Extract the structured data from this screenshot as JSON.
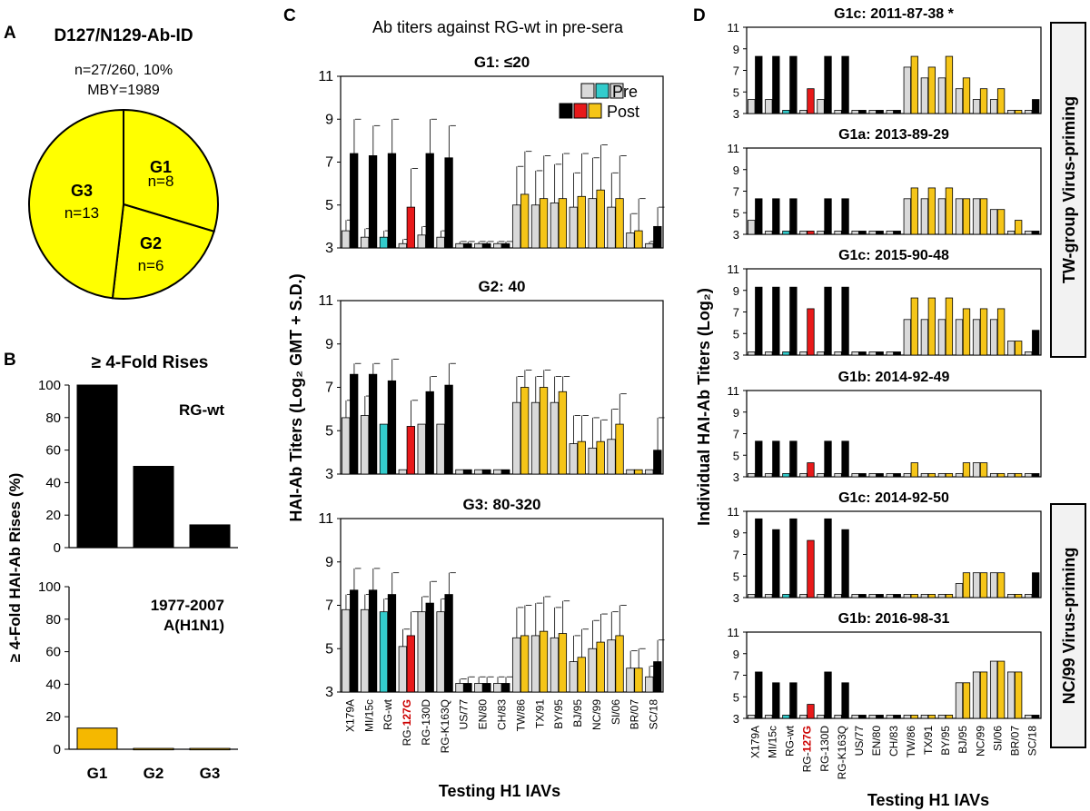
{
  "panels": {
    "A": {
      "letter": "A",
      "title": "D127/N129-Ab-ID",
      "line1": "n=27/260, 10%",
      "line2": "MBY=1989",
      "slices": [
        {
          "label": "G1",
          "n": "n=8",
          "value": 8
        },
        {
          "label": "G2",
          "n": "n=6",
          "value": 6
        },
        {
          "label": "G3",
          "n": "n=13",
          "value": 13
        }
      ]
    },
    "B": {
      "letter": "B",
      "title": "≥ 4-Fold Rises",
      "ylabel": "≥ 4-Fold HAI-Ab Rises (%)",
      "categories": [
        "G1",
        "G2",
        "G3"
      ]
    },
    "C": {
      "letter": "C",
      "title": "Ab titers against RG-wt in pre-sera",
      "ylabel": "HAI-Ab Titers (Log₂ GMT + S.D.)",
      "xlabel": "Testing H1 IAVs",
      "legend": {
        "pre": "Pre",
        "post": "Post"
      }
    },
    "D": {
      "letter": "D",
      "ylabel": "Individual HAI-Ab Titers (Log₂)",
      "xlabel": "Testing H1 IAVs",
      "side_label_top": "TW-group Virus-priming",
      "side_label_bottom": "NC/99 Virus-priming"
    }
  },
  "viruses": [
    "X179A",
    "MI/15c",
    "RG-wt",
    "RG-127G",
    "RG-130D",
    "RG-K163Q",
    "US/77",
    "EN/80",
    "CH/83",
    "TW/86",
    "TX/91",
    "BY/95",
    "BJ/95",
    "NC/99",
    "SI/06",
    "BR/07",
    "SC/18"
  ],
  "colors": {
    "pre_base": "#d9d9d9",
    "post_base": "#000000",
    "pre_wt": "#33cccc",
    "post_127g": "#e8191a",
    "pre_human": "#d9d9d9",
    "post_human": "#f5c518",
    "pie": "#ffff00",
    "bar_b_top": "#000000",
    "bar_b_bottom": "#f5b800",
    "red_label": "#cc0000"
  },
  "chart_data": [
    {
      "id": "A",
      "type": "pie",
      "title": "D127/N129-Ab-ID",
      "categories": [
        "G1",
        "G2",
        "G3"
      ],
      "values": [
        8,
        6,
        13
      ]
    },
    {
      "id": "B-top",
      "type": "bar",
      "title": "≥ 4-Fold Rises",
      "series_label": "RG-wt",
      "categories": [
        "G1",
        "G2",
        "G3"
      ],
      "values": [
        100,
        50,
        14
      ],
      "ylim": [
        0,
        100
      ],
      "yticks": [
        0,
        20,
        40,
        60,
        80,
        100
      ]
    },
    {
      "id": "B-bottom",
      "type": "bar",
      "series_label": [
        "1977-2007",
        "A(H1N1)"
      ],
      "categories": [
        "G1",
        "G2",
        "G3"
      ],
      "values": [
        13,
        0.5,
        0.5
      ],
      "ylim": [
        0,
        100
      ],
      "yticks": [
        0,
        20,
        40,
        60,
        80,
        100
      ]
    },
    {
      "id": "C-G1",
      "type": "bar",
      "title": "G1: ≤20",
      "ylim": [
        3,
        11
      ],
      "yticks": [
        3,
        5,
        7,
        9,
        11
      ],
      "series": [
        {
          "name": "Pre",
          "values": [
            3.8,
            3.5,
            3.5,
            3.2,
            3.6,
            3.5,
            3.2,
            3.2,
            3.2,
            5.0,
            5.0,
            5.1,
            4.9,
            5.3,
            4.9,
            3.7,
            3.2
          ],
          "sd": [
            0.5,
            0.4,
            0.3,
            0.2,
            0.4,
            0.3,
            0.1,
            0.1,
            0.1,
            1.8,
            1.6,
            1.8,
            1.6,
            1.9,
            1.6,
            0.9,
            0.1
          ]
        },
        {
          "name": "Post",
          "values": [
            7.4,
            7.3,
            7.4,
            4.9,
            7.4,
            7.2,
            3.2,
            3.2,
            3.2,
            5.5,
            5.3,
            5.3,
            5.4,
            5.7,
            5.3,
            3.8,
            4.0
          ],
          "sd": [
            1.6,
            1.4,
            1.6,
            1.8,
            1.6,
            1.5,
            0.1,
            0.1,
            0.1,
            2.0,
            2.0,
            2.1,
            2.0,
            2.1,
            2.0,
            1.5,
            0.9
          ]
        }
      ]
    },
    {
      "id": "C-G2",
      "type": "bar",
      "title": "G2: 40",
      "ylim": [
        3,
        11
      ],
      "yticks": [
        3,
        5,
        7,
        9,
        11
      ],
      "series": [
        {
          "name": "Pre",
          "values": [
            5.6,
            5.7,
            5.3,
            3.2,
            5.3,
            5.3,
            3.2,
            3.2,
            3.2,
            6.3,
            6.3,
            6.3,
            4.4,
            4.2,
            4.6,
            3.2,
            3.2
          ],
          "sd": [
            0.8,
            0.9,
            0.0,
            0.0,
            0.0,
            0.0,
            0.0,
            0.0,
            0.0,
            1.2,
            1.2,
            1.2,
            1.3,
            1.4,
            1.4,
            0.0,
            0.0
          ],
          "sd_hidden": true
        },
        {
          "name": "Post",
          "values": [
            7.6,
            7.6,
            7.3,
            5.2,
            6.8,
            7.1,
            3.2,
            3.2,
            3.2,
            7.0,
            7.0,
            6.8,
            4.5,
            4.5,
            5.3,
            3.2,
            4.1
          ],
          "sd": [
            0.5,
            0.5,
            1.0,
            1.2,
            0.7,
            1.0,
            0.0,
            0.0,
            0.0,
            0.8,
            0.8,
            0.7,
            1.2,
            1.0,
            1.4,
            0.0,
            1.5
          ]
        }
      ]
    },
    {
      "id": "C-G3",
      "type": "bar",
      "title": "G3: 80-320",
      "ylim": [
        3,
        11
      ],
      "yticks": [
        3,
        5,
        7,
        9,
        11
      ],
      "series": [
        {
          "name": "Pre",
          "values": [
            6.8,
            6.8,
            6.7,
            5.1,
            6.7,
            6.7,
            3.4,
            3.4,
            3.4,
            5.5,
            5.6,
            5.5,
            4.4,
            5.0,
            5.4,
            4.1,
            3.7
          ],
          "sd": [
            0.7,
            0.7,
            0.6,
            0.8,
            0.7,
            0.6,
            0.2,
            0.3,
            0.3,
            1.4,
            1.5,
            1.4,
            1.2,
            1.3,
            1.3,
            0.8,
            0.5
          ]
        },
        {
          "name": "Post",
          "values": [
            7.7,
            7.7,
            7.5,
            5.6,
            7.1,
            7.5,
            3.4,
            3.4,
            3.4,
            5.6,
            5.8,
            5.7,
            4.6,
            5.3,
            5.6,
            4.1,
            4.4
          ],
          "sd": [
            1.0,
            1.0,
            1.0,
            1.1,
            1.0,
            1.0,
            0.3,
            0.3,
            0.3,
            1.4,
            1.6,
            1.5,
            1.3,
            1.3,
            1.4,
            0.9,
            1.0
          ]
        }
      ]
    },
    {
      "id": "D-1",
      "type": "bar",
      "title": "G1c: 2011-87-38 *",
      "ylim": [
        3,
        11
      ],
      "yticks": [
        3,
        5,
        7,
        9,
        11
      ],
      "series": [
        {
          "name": "Pre",
          "values": [
            4.3,
            4.3,
            3.3,
            3.3,
            4.3,
            3.3,
            3.3,
            3.3,
            3.3,
            7.3,
            6.3,
            6.3,
            5.3,
            4.3,
            4.3,
            3.3,
            3.3
          ]
        },
        {
          "name": "Post",
          "values": [
            8.3,
            8.3,
            8.3,
            5.3,
            8.3,
            8.3,
            3.3,
            3.3,
            3.3,
            8.3,
            7.3,
            8.3,
            6.3,
            5.3,
            5.3,
            3.3,
            4.3
          ]
        }
      ]
    },
    {
      "id": "D-2",
      "type": "bar",
      "title": "G1a: 2013-89-29",
      "ylim": [
        3,
        11
      ],
      "yticks": [
        3,
        5,
        7,
        9,
        11
      ],
      "series": [
        {
          "name": "Pre",
          "values": [
            4.3,
            3.3,
            3.3,
            3.3,
            3.3,
            3.3,
            3.3,
            3.3,
            3.3,
            6.3,
            6.3,
            6.3,
            6.3,
            6.3,
            5.3,
            3.3,
            3.3
          ]
        },
        {
          "name": "Post",
          "values": [
            6.3,
            6.3,
            6.3,
            3.3,
            6.3,
            6.3,
            3.3,
            3.3,
            3.3,
            7.3,
            7.3,
            7.3,
            6.3,
            6.3,
            5.3,
            4.3,
            3.3
          ]
        }
      ]
    },
    {
      "id": "D-3",
      "type": "bar",
      "title": "G1c: 2015-90-48",
      "ylim": [
        3,
        11
      ],
      "yticks": [
        3,
        5,
        7,
        9,
        11
      ],
      "series": [
        {
          "name": "Pre",
          "values": [
            3.3,
            3.3,
            3.3,
            3.3,
            3.3,
            3.3,
            3.3,
            3.3,
            3.3,
            6.3,
            6.3,
            6.3,
            6.3,
            6.3,
            6.3,
            4.3,
            3.3
          ]
        },
        {
          "name": "Post",
          "values": [
            9.3,
            9.3,
            9.3,
            7.3,
            9.3,
            9.3,
            3.3,
            3.3,
            3.3,
            8.3,
            8.3,
            8.3,
            7.3,
            7.3,
            7.3,
            4.3,
            5.3
          ]
        }
      ]
    },
    {
      "id": "D-4",
      "type": "bar",
      "title": "G1b: 2014-92-49",
      "ylim": [
        3,
        11
      ],
      "yticks": [
        3,
        5,
        7,
        9,
        11
      ],
      "series": [
        {
          "name": "Pre",
          "values": [
            3.3,
            3.3,
            3.3,
            3.3,
            3.3,
            3.3,
            3.3,
            3.3,
            3.3,
            3.3,
            3.3,
            3.3,
            3.3,
            4.3,
            3.3,
            3.3,
            3.3
          ]
        },
        {
          "name": "Post",
          "values": [
            6.3,
            6.3,
            6.3,
            4.3,
            6.3,
            6.3,
            3.3,
            3.3,
            3.3,
            4.3,
            3.3,
            3.3,
            4.3,
            4.3,
            3.3,
            3.3,
            3.3
          ]
        }
      ]
    },
    {
      "id": "D-5",
      "type": "bar",
      "title": "G1c: 2014-92-50",
      "ylim": [
        3,
        11
      ],
      "yticks": [
        3,
        5,
        7,
        9,
        11
      ],
      "series": [
        {
          "name": "Pre",
          "values": [
            3.3,
            3.3,
            3.3,
            3.3,
            3.3,
            3.3,
            3.3,
            3.3,
            3.3,
            3.3,
            3.3,
            3.3,
            4.3,
            5.3,
            5.3,
            3.3,
            3.3
          ]
        },
        {
          "name": "Post",
          "values": [
            10.3,
            9.3,
            10.3,
            8.3,
            10.3,
            9.3,
            3.3,
            3.3,
            3.3,
            3.3,
            3.3,
            3.3,
            5.3,
            5.3,
            5.3,
            3.3,
            5.3
          ]
        }
      ]
    },
    {
      "id": "D-6",
      "type": "bar",
      "title": "G1b: 2016-98-31",
      "ylim": [
        3,
        11
      ],
      "yticks": [
        3,
        5,
        7,
        9,
        11
      ],
      "series": [
        {
          "name": "Pre",
          "values": [
            3.3,
            3.3,
            3.3,
            3.3,
            3.3,
            3.3,
            3.3,
            3.3,
            3.3,
            3.3,
            3.3,
            3.3,
            6.3,
            7.3,
            8.3,
            7.3,
            3.3
          ]
        },
        {
          "name": "Post",
          "values": [
            7.3,
            6.3,
            6.3,
            4.3,
            7.3,
            6.3,
            3.3,
            3.3,
            3.3,
            3.3,
            3.3,
            3.3,
            6.3,
            7.3,
            8.3,
            7.3,
            3.3
          ]
        }
      ]
    }
  ]
}
